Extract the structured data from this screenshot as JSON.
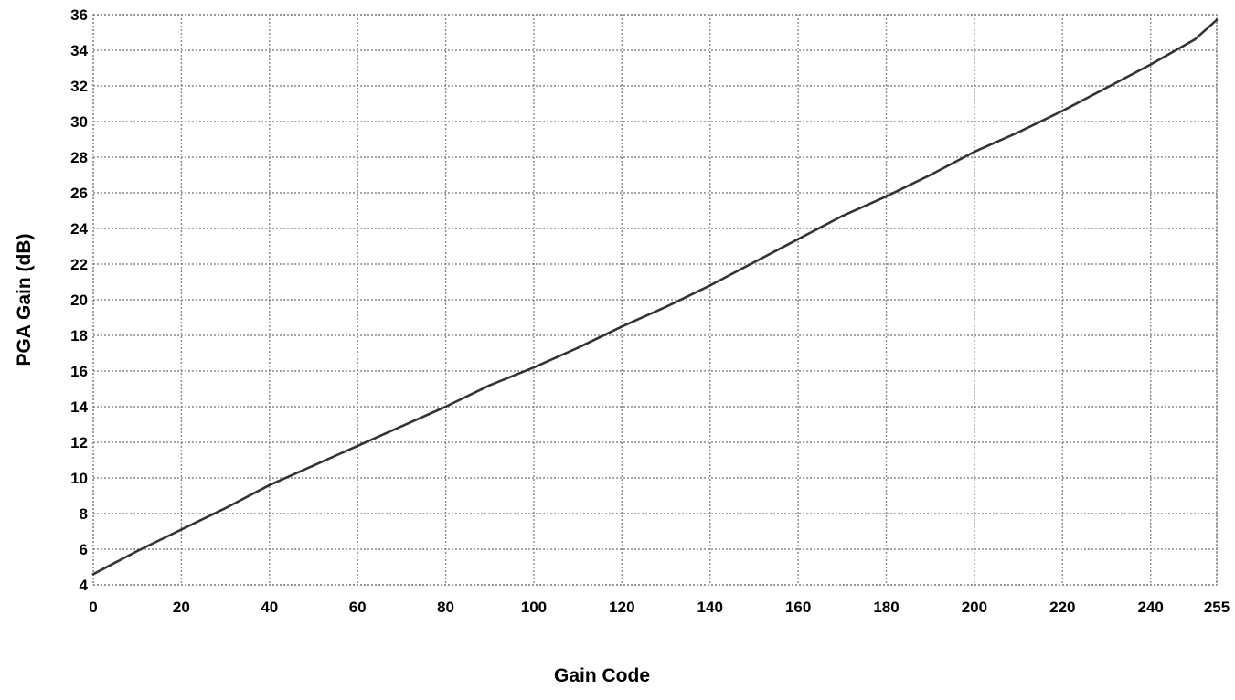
{
  "chart_data": {
    "type": "line",
    "title": "",
    "xlabel": "Gain Code",
    "ylabel": "PGA Gain (dB)",
    "xlim": [
      0,
      255
    ],
    "ylim": [
      4,
      36
    ],
    "x_ticks": [
      0,
      20,
      40,
      60,
      80,
      100,
      120,
      140,
      160,
      180,
      200,
      220,
      240,
      255
    ],
    "y_ticks": [
      4,
      6,
      8,
      10,
      12,
      14,
      16,
      18,
      20,
      22,
      24,
      26,
      28,
      30,
      32,
      34,
      36
    ],
    "x_tick_labels": [
      "0",
      "20",
      "40",
      "60",
      "80",
      "100",
      "120",
      "140",
      "160",
      "180",
      "200",
      "220",
      "240",
      "255"
    ],
    "y_tick_labels": [
      "4",
      "6",
      "8",
      "10",
      "12",
      "14",
      "16",
      "18",
      "20",
      "22",
      "24",
      "26",
      "28",
      "30",
      "32",
      "34",
      "36"
    ],
    "grid": true,
    "series": [
      {
        "x": [
          0,
          10,
          20,
          30,
          40,
          50,
          60,
          70,
          80,
          90,
          100,
          110,
          120,
          130,
          140,
          150,
          160,
          170,
          180,
          190,
          200,
          210,
          220,
          230,
          240,
          250,
          255
        ],
        "y": [
          4.6,
          5.9,
          7.1,
          8.3,
          9.6,
          10.7,
          11.8,
          12.9,
          14.0,
          15.2,
          16.2,
          17.3,
          18.5,
          19.6,
          20.8,
          22.1,
          23.4,
          24.7,
          25.8,
          27.0,
          28.3,
          29.4,
          30.6,
          31.9,
          33.2,
          34.6,
          35.7
        ]
      }
    ],
    "colors": {
      "line": "#333333",
      "grid": "#888888",
      "axis": "#888888",
      "text": "#000000"
    }
  }
}
